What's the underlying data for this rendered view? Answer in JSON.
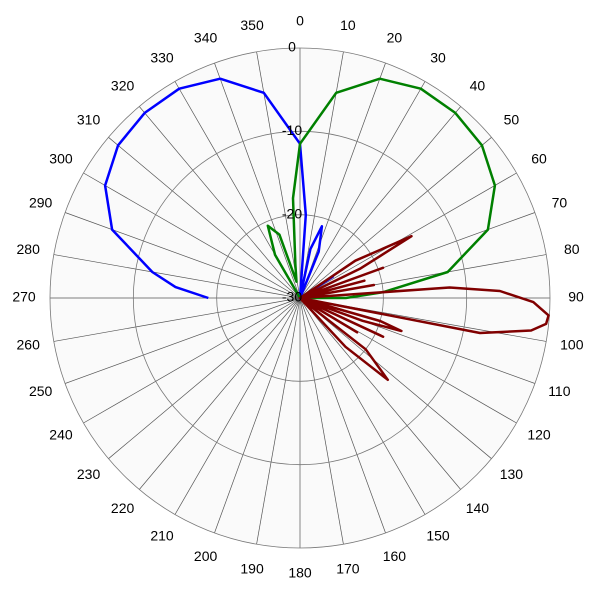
{
  "chart_data": {
    "type": "polar",
    "rlim": [
      -30,
      0
    ],
    "rticks": [
      -30,
      -20,
      -10,
      0
    ],
    "thetaticks": [
      0,
      10,
      20,
      30,
      40,
      50,
      60,
      70,
      80,
      90,
      100,
      110,
      120,
      130,
      140,
      150,
      160,
      170,
      180,
      190,
      200,
      210,
      220,
      230,
      240,
      250,
      260,
      270,
      280,
      290,
      300,
      310,
      320,
      330,
      340,
      350
    ],
    "grid": true,
    "series": [
      {
        "color": "#0000ff",
        "theta": [
          270,
          275,
          280,
          290,
          300,
          310,
          320,
          330,
          340,
          350,
          0,
          4,
          8,
          12,
          17,
          22,
          26,
          40,
          57,
          70
        ],
        "values": [
          -19,
          -15,
          -12,
          -6,
          -3,
          -1.5,
          -1,
          -1,
          -2,
          -5,
          -11.5,
          -20,
          -30,
          -24,
          -21,
          -24,
          -30,
          -30,
          -25.3,
          -30
        ]
      },
      {
        "color": "#008000",
        "theta": [
          325,
          330,
          336,
          342,
          348,
          352,
          356,
          0,
          10,
          20,
          30,
          40,
          50,
          60,
          70,
          80,
          86,
          90,
          100
        ],
        "values": [
          -30,
          -24,
          -20.5,
          -22,
          -28,
          -26,
          -18,
          -11.5,
          -5,
          -2,
          -1,
          -1,
          -1.5,
          -3,
          -6,
          -12,
          -20,
          -24.5,
          -30
        ]
      },
      {
        "color": "#800000",
        "theta": [
          50,
          56,
          61,
          64,
          67,
          70,
          72,
          75,
          78,
          80,
          83,
          86,
          88,
          91,
          94,
          96,
          98,
          101,
          103,
          106,
          108,
          110,
          112,
          115,
          118,
          121,
          124,
          128,
          133,
          137,
          140
        ],
        "values": [
          -30,
          -22,
          -14.7,
          -22,
          -30,
          -19.4,
          -30,
          -22,
          -30,
          -21,
          -30,
          -12,
          -6,
          -2,
          -0.1,
          -0.3,
          -2,
          -8,
          -30,
          -20,
          -17.2,
          -22,
          -30,
          -19,
          -30,
          -22,
          -30,
          -20,
          -15.6,
          -22,
          -30
        ]
      }
    ]
  }
}
